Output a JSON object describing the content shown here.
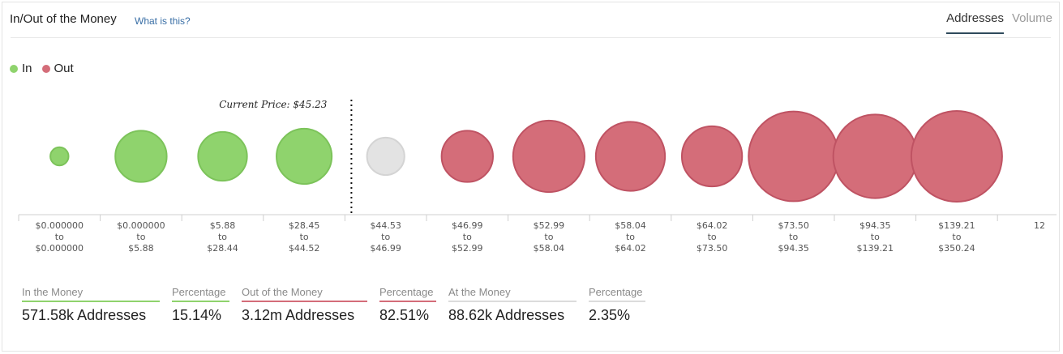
{
  "header": {
    "title": "In/Out of the Money",
    "help_link": "What is this?",
    "tabs": [
      {
        "label": "Addresses",
        "active": true
      },
      {
        "label": "Volume",
        "active": false
      }
    ]
  },
  "legend": [
    {
      "label": "In",
      "color": "#8fd36d"
    },
    {
      "label": "Out",
      "color": "#d46d79"
    }
  ],
  "colors": {
    "in": "#8fd36d",
    "out": "#d46d79",
    "at": "#e3e3e3",
    "in_stroke": "#7cc35a",
    "out_stroke": "#bf5363",
    "at_stroke": "#d4d4d4"
  },
  "chart_data": {
    "type": "bubble",
    "title": "In/Out of the Money",
    "current_price_label": "Current Price: $45.23",
    "current_price_after_index": 3,
    "bins": [
      {
        "from": "$0.000000",
        "to": "$0.000000",
        "status": "in",
        "size": 0.04
      },
      {
        "from": "$0.000000",
        "to": "$5.88",
        "status": "in",
        "size": 0.32
      },
      {
        "from": "$5.88",
        "to": "$28.44",
        "status": "in",
        "size": 0.29
      },
      {
        "from": "$28.45",
        "to": "$44.52",
        "status": "in",
        "size": 0.37
      },
      {
        "from": "$44.53",
        "to": "$46.99",
        "status": "at",
        "size": 0.17
      },
      {
        "from": "$46.99",
        "to": "$52.99",
        "status": "out",
        "size": 0.32
      },
      {
        "from": "$52.99",
        "to": "$58.04",
        "status": "out",
        "size": 0.62
      },
      {
        "from": "$58.04",
        "to": "$64.02",
        "status": "out",
        "size": 0.58
      },
      {
        "from": "$64.02",
        "to": "$73.50",
        "status": "out",
        "size": 0.44
      },
      {
        "from": "$73.50",
        "to": "$94.35",
        "status": "out",
        "size": 0.98
      },
      {
        "from": "$94.35",
        "to": "$139.21",
        "status": "out",
        "size": 0.85
      },
      {
        "from": "$139.21",
        "to": "$350.24",
        "status": "out",
        "size": 1.0
      }
    ],
    "overflow_tick": "12",
    "to_word": "to"
  },
  "summary": [
    {
      "label": "In the Money",
      "value": "571.58k Addresses",
      "accent": "green"
    },
    {
      "label": "Percentage",
      "value": "15.14%",
      "accent": "green"
    },
    {
      "label": "Out of the Money",
      "value": "3.12m Addresses",
      "accent": "red"
    },
    {
      "label": "Percentage",
      "value": "82.51%",
      "accent": "red"
    },
    {
      "label": "At the Money",
      "value": "88.62k Addresses",
      "accent": "gray"
    },
    {
      "label": "Percentage",
      "value": "2.35%",
      "accent": "gray"
    }
  ]
}
